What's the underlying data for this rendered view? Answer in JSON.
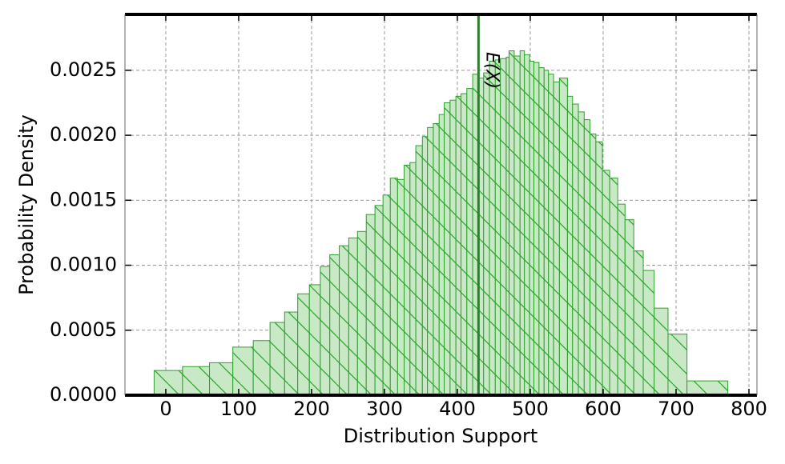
{
  "chart_data": {
    "type": "histogram",
    "xlabel": "Distribution Support",
    "ylabel": "Probability Density",
    "bins": [
      -16,
      23,
      60,
      92,
      120,
      143,
      163,
      181,
      197,
      212,
      225,
      238,
      251,
      263,
      275,
      287,
      298,
      308,
      318,
      327,
      335,
      343,
      352,
      359,
      367,
      375,
      382,
      390,
      398,
      405,
      413,
      421,
      429,
      436,
      444,
      452,
      459,
      467,
      471,
      478,
      486,
      492,
      499,
      505,
      512,
      519,
      525,
      532,
      540,
      551,
      558,
      566,
      574,
      582,
      590,
      599,
      609,
      620,
      630,
      642,
      655,
      670,
      689,
      715,
      771
    ],
    "counts": [
      0.00019,
      0.00022,
      0.00025,
      0.00037,
      0.00042,
      0.00056,
      0.00064,
      0.00078,
      0.00085,
      0.00099,
      0.00108,
      0.00115,
      0.00121,
      0.00126,
      0.00139,
      0.00146,
      0.00154,
      0.00167,
      0.00166,
      0.00177,
      0.00179,
      0.00192,
      0.00199,
      0.00206,
      0.00209,
      0.00216,
      0.00225,
      0.00227,
      0.0023,
      0.00232,
      0.00236,
      0.00247,
      0.00244,
      0.00248,
      0.00257,
      0.00258,
      0.00259,
      0.0026,
      0.00265,
      0.00261,
      0.00265,
      0.00262,
      0.00257,
      0.00256,
      0.00252,
      0.0025,
      0.00247,
      0.00241,
      0.00244,
      0.0023,
      0.00224,
      0.00218,
      0.00212,
      0.00201,
      0.00195,
      0.00173,
      0.00167,
      0.00147,
      0.00135,
      0.00111,
      0.00096,
      0.00067,
      0.00047,
      0.00011
    ],
    "color": "#2ca02c",
    "fill": "#c9e8c6",
    "annotation": {
      "text": "E(X)",
      "x": 429,
      "color": "#2e7d32"
    },
    "xlim": [
      -56,
      811
    ],
    "xticks": [
      0,
      100,
      200,
      300,
      400,
      500,
      600,
      700,
      800
    ],
    "ylim": [
      0,
      0.00293
    ],
    "yticks": [
      {
        "value": 0,
        "label": "0.0000"
      },
      {
        "value": 0.0005,
        "label": "0.0005"
      },
      {
        "value": 0.001,
        "label": "0.0010"
      },
      {
        "value": 0.0015,
        "label": "0.0015"
      },
      {
        "value": 0.002,
        "label": "0.0020"
      },
      {
        "value": 0.0025,
        "label": "0.0025"
      }
    ],
    "grid": true
  }
}
